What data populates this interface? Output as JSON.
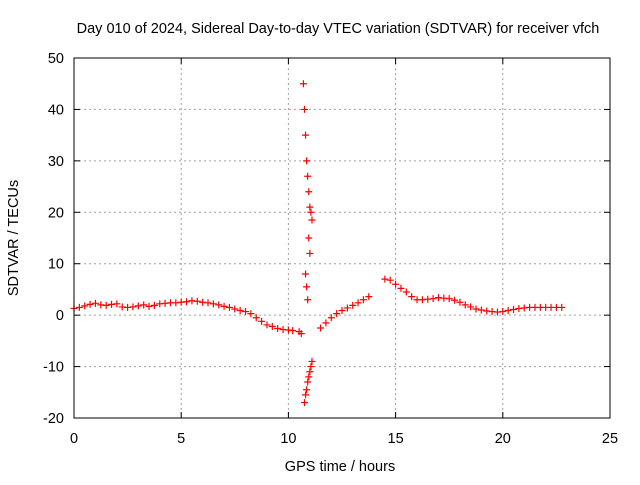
{
  "chart_data": {
    "type": "scatter",
    "title": "Day 010 of 2024, Sidereal Day-to-day VTEC variation (SDTVAR) for receiver vfch",
    "xlabel": "GPS time / hours",
    "ylabel": "SDTVAR / TECUs",
    "xlim": [
      0,
      25
    ],
    "ylim": [
      -20,
      50
    ],
    "xticks": [
      0,
      5,
      10,
      15,
      20,
      25
    ],
    "yticks": [
      -20,
      -10,
      0,
      10,
      20,
      30,
      40,
      50
    ],
    "xtick_labels": [
      "0",
      "5",
      "10",
      "15",
      "20",
      "25"
    ],
    "ytick_labels": [
      "-20",
      "-10",
      "0",
      "10",
      "20",
      "30",
      "40",
      "50"
    ],
    "grid": true,
    "marker": "+",
    "color": "#ff0000",
    "series": [
      {
        "name": "SDTVAR",
        "x": [
          0.0,
          0.25,
          0.5,
          0.75,
          1.0,
          1.25,
          1.5,
          1.75,
          2.0,
          2.25,
          2.5,
          2.75,
          3.0,
          3.25,
          3.5,
          3.75,
          4.0,
          4.25,
          4.5,
          4.75,
          5.0,
          5.25,
          5.5,
          5.75,
          6.0,
          6.25,
          6.5,
          6.75,
          7.0,
          7.25,
          7.5,
          7.75,
          8.0,
          8.25,
          8.5,
          8.75,
          9.0,
          9.25,
          9.5,
          9.75,
          10.0,
          10.2,
          10.5,
          10.6,
          10.7,
          10.75,
          10.8,
          10.85,
          10.9,
          10.95,
          11.0,
          11.05,
          11.1,
          10.8,
          10.85,
          10.9,
          10.95,
          11.0,
          10.75,
          10.8,
          10.85,
          10.9,
          10.95,
          11.0,
          11.05,
          11.1,
          11.5,
          11.75,
          12.0,
          12.25,
          12.5,
          12.75,
          13.0,
          13.25,
          13.5,
          13.75,
          14.5,
          14.75,
          15.0,
          15.25,
          15.5,
          15.75,
          16.0,
          16.25,
          16.5,
          16.75,
          17.0,
          17.25,
          17.5,
          17.75,
          18.0,
          18.25,
          18.5,
          18.75,
          19.0,
          19.25,
          19.5,
          19.75,
          20.0,
          20.25,
          20.5,
          20.75,
          21.0,
          21.25,
          21.5,
          21.75,
          22.0,
          22.25,
          22.5,
          22.75
        ],
        "y": [
          1.3,
          1.5,
          1.8,
          2.1,
          2.3,
          2.0,
          1.9,
          2.1,
          2.2,
          1.6,
          1.5,
          1.6,
          1.8,
          2.0,
          1.7,
          1.9,
          2.2,
          2.3,
          2.4,
          2.4,
          2.5,
          2.6,
          2.8,
          2.7,
          2.5,
          2.4,
          2.2,
          2.0,
          1.7,
          1.5,
          1.2,
          0.9,
          0.7,
          0.3,
          -0.5,
          -1.2,
          -1.9,
          -2.2,
          -2.6,
          -2.8,
          -2.9,
          -3.0,
          -3.2,
          -3.6,
          45.0,
          40.0,
          35.0,
          30.0,
          27.0,
          24.0,
          21.0,
          20.0,
          18.5,
          8.0,
          5.5,
          3.0,
          15.0,
          12.0,
          -17.0,
          -15.5,
          -14.5,
          -13.0,
          -12.0,
          -11.0,
          -10.0,
          -9.0,
          -2.5,
          -1.5,
          -0.5,
          0.3,
          0.9,
          1.4,
          1.9,
          2.4,
          3.0,
          3.6,
          7.0,
          6.8,
          6.0,
          5.2,
          4.5,
          3.6,
          3.0,
          3.0,
          3.1,
          3.2,
          3.4,
          3.3,
          3.2,
          2.9,
          2.5,
          2.0,
          1.6,
          1.2,
          1.0,
          0.8,
          0.7,
          0.6,
          0.7,
          0.9,
          1.1,
          1.3,
          1.4,
          1.5,
          1.5,
          1.5,
          1.5,
          1.5,
          1.5,
          1.5
        ]
      }
    ]
  }
}
